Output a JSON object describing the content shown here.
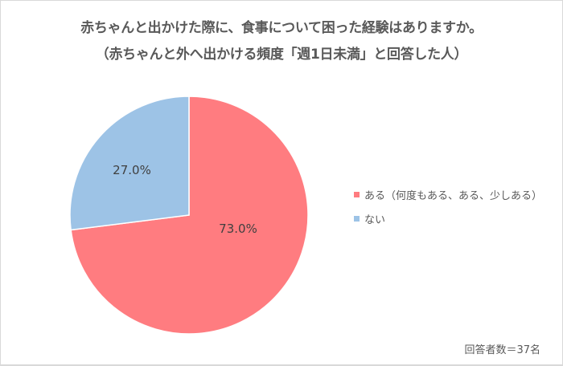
{
  "title": {
    "line1": "赤ちゃんと出かけた際に、食事について困った経験はありますか。",
    "line2": "（赤ちゃんと外へ出かける頻度「週1日未満」と回答した人）"
  },
  "legend": {
    "items": [
      {
        "label": "ある（何度もある、ある、少しある）",
        "color": "#ff7c80"
      },
      {
        "label": "ない",
        "color": "#9dc3e6"
      }
    ]
  },
  "slices": [
    {
      "label": "73.0%",
      "color": "#ff7c80"
    },
    {
      "label": "27.0%",
      "color": "#9dc3e6"
    }
  ],
  "footnote": "回答者数＝37名",
  "chart_data": {
    "type": "pie",
    "title": "赤ちゃんと出かけた際に、食事について困った経験はありますか。（赤ちゃんと外へ出かける頻度「週1日未満」と回答した人）",
    "categories": [
      "ある（何度もある、ある、少しある）",
      "ない"
    ],
    "values": [
      73.0,
      27.0
    ],
    "unit": "%",
    "colors": [
      "#ff7c80",
      "#9dc3e6"
    ],
    "legend_position": "right",
    "annotation": "回答者数＝37名",
    "start_angle": "12 o'clock, clockwise"
  }
}
